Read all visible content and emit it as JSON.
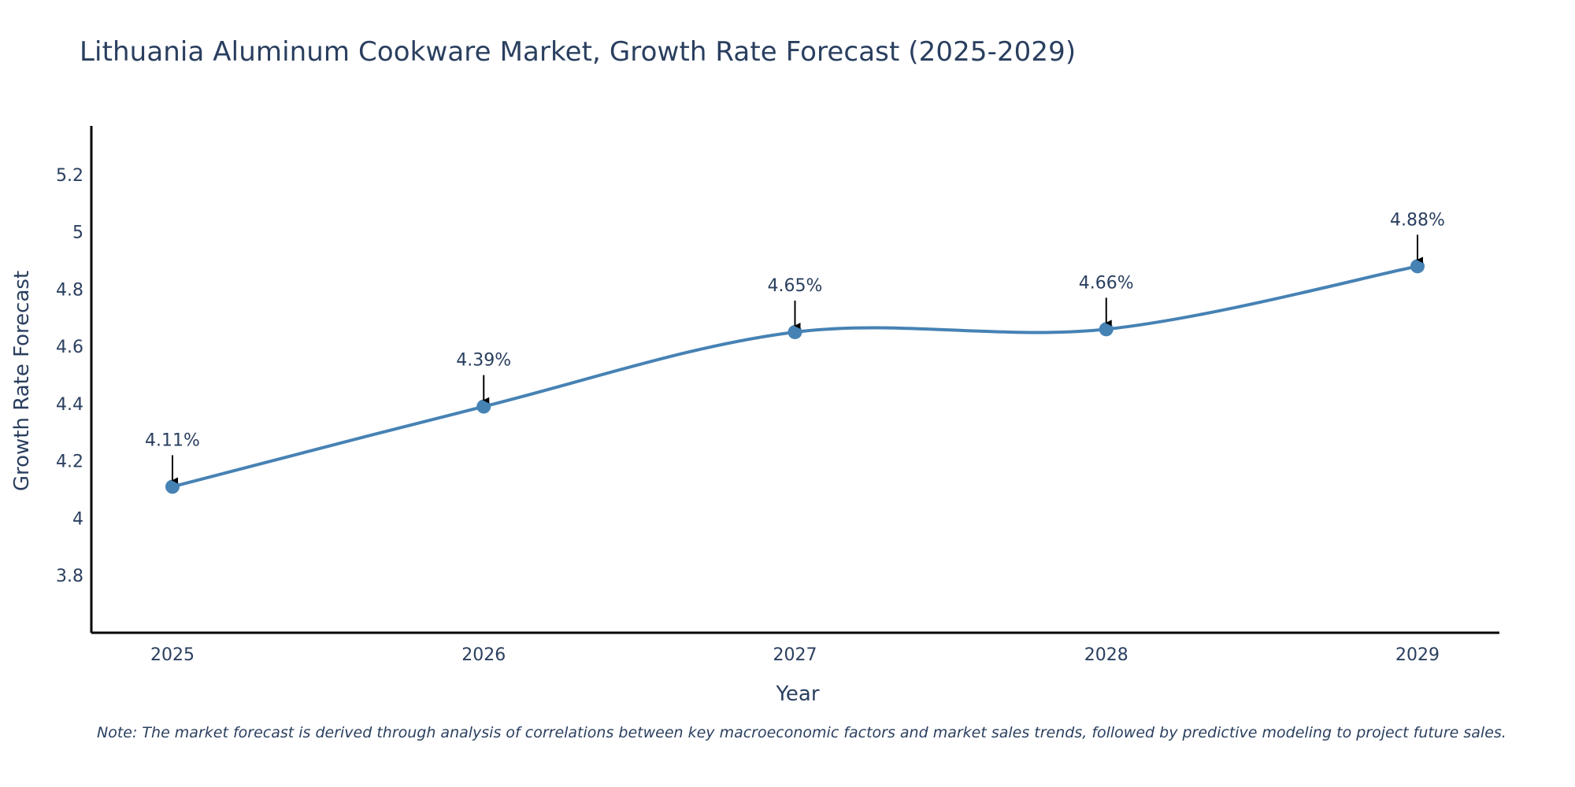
{
  "chart_data": {
    "type": "line",
    "title": "Lithuania Aluminum Cookware Market, Growth Rate Forecast (2025-2029)",
    "xlabel": "Year",
    "ylabel": "Growth Rate Forecast",
    "categories": [
      "2025",
      "2026",
      "2027",
      "2028",
      "2029"
    ],
    "series": [
      {
        "name": "Growth Rate Forecast",
        "values": [
          4.11,
          4.39,
          4.65,
          4.66,
          4.88
        ],
        "data_labels": [
          "4.11%",
          "4.39%",
          "4.65%",
          "4.66%",
          "4.88%"
        ]
      }
    ],
    "ylim": [
      3.6,
      5.37
    ],
    "yticks": [
      3.8,
      4,
      4.2,
      4.4,
      4.6,
      4.8,
      5,
      5.2
    ],
    "ytick_labels": [
      "3.8",
      "4",
      "4.2",
      "4.4",
      "4.6",
      "4.8",
      "5",
      "5.2"
    ],
    "grid": false,
    "line_color": "#4682B4",
    "marker_color": "#4682B4",
    "note": "Note: The market forecast is derived through analysis of correlations between key macroeconomic factors and market sales trends, followed by predictive modeling to project future sales."
  }
}
